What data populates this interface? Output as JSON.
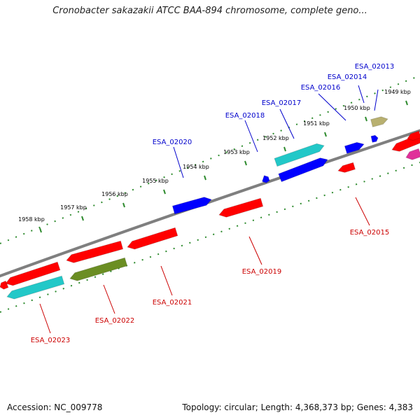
{
  "title": "Cronobacter sakazakii ATCC BAA-894 chromosome, complete geno...",
  "footer": {
    "accession": "Accession: NC_009778",
    "summary": "Topology: circular; Length: 4,368,373 bp; Genes: 4,383"
  },
  "colors": {
    "backbone": "#7f7f7f",
    "tick": "#2e8b2e",
    "label_forward": "#0000cc",
    "label_reverse": "#cc0000",
    "red": "#ff0000",
    "blue": "#0000ff",
    "cyan": "#22c8c8",
    "olive": "#6b8e23",
    "khaki": "#b8b070",
    "magenta": "#e0309a"
  },
  "ruler": [
    {
      "label": "1949 kbp",
      "pos": 1949
    },
    {
      "label": "1950 kbp",
      "pos": 1950
    },
    {
      "label": "1951 kbp",
      "pos": 1951
    },
    {
      "label": "1952 kbp",
      "pos": 1952
    },
    {
      "label": "1953 kbp",
      "pos": 1953
    },
    {
      "label": "1954 kbp",
      "pos": 1954
    },
    {
      "label": "1955 kbp",
      "pos": 1955
    },
    {
      "label": "1956 kbp",
      "pos": 1956
    },
    {
      "label": "1957 kbp",
      "pos": 1957
    },
    {
      "label": "1958 kbp",
      "pos": 1958
    }
  ],
  "genes": [
    {
      "label": "ESA_02013",
      "strand": "forward",
      "color": "khaki",
      "start": 1949.6,
      "end": 1949.85
    },
    {
      "label": "ESA_02014",
      "strand": "forward",
      "color": "blue",
      "start": 1949.75,
      "end": 1949.95
    },
    {
      "label": "ESA_02016",
      "strand": "forward",
      "color": "blue",
      "start": 1950.3,
      "end": 1950.55
    },
    {
      "label": "ESA_02017",
      "strand": "forward",
      "color": "cyan",
      "start": 1951.4,
      "end": 1952.3
    },
    {
      "label": "ESA_02018",
      "strand": "forward",
      "color": "blue",
      "start": 1952.8,
      "end": 1952.95
    },
    {
      "label": "ESA_02020",
      "strand": "forward",
      "color": "blue",
      "start": 1954.4,
      "end": 1955.1
    },
    {
      "label": "ESA_02015",
      "strand": "reverse",
      "color": "red",
      "start": 1950.6,
      "end": 1950.9
    },
    {
      "label": "ESA_02019",
      "strand": "reverse",
      "color": "red",
      "start": 1953.3,
      "end": 1954.1
    },
    {
      "label": "ESA_02021",
      "strand": "reverse",
      "color": "red",
      "start": 1955.3,
      "end": 1956.1
    },
    {
      "label": "ESA_02022",
      "strand": "reverse",
      "color": "olive",
      "start": 1956.3,
      "end": 1957.1
    },
    {
      "label": "ESA_02023",
      "strand": "reverse",
      "color": "cyan",
      "start": 1958.1,
      "end": 1959.0
    }
  ],
  "unlabeled_features": [
    {
      "name": "forward-blue",
      "color": "blue"
    },
    {
      "name": "reverse-red-a",
      "color": "red"
    },
    {
      "name": "reverse-red-b",
      "color": "red"
    },
    {
      "name": "reverse-red-c",
      "color": "red"
    },
    {
      "name": "reverse-red-d",
      "color": "red"
    },
    {
      "name": "reverse-red-e",
      "color": "red"
    },
    {
      "name": "reverse-magenta",
      "color": "magenta"
    }
  ]
}
